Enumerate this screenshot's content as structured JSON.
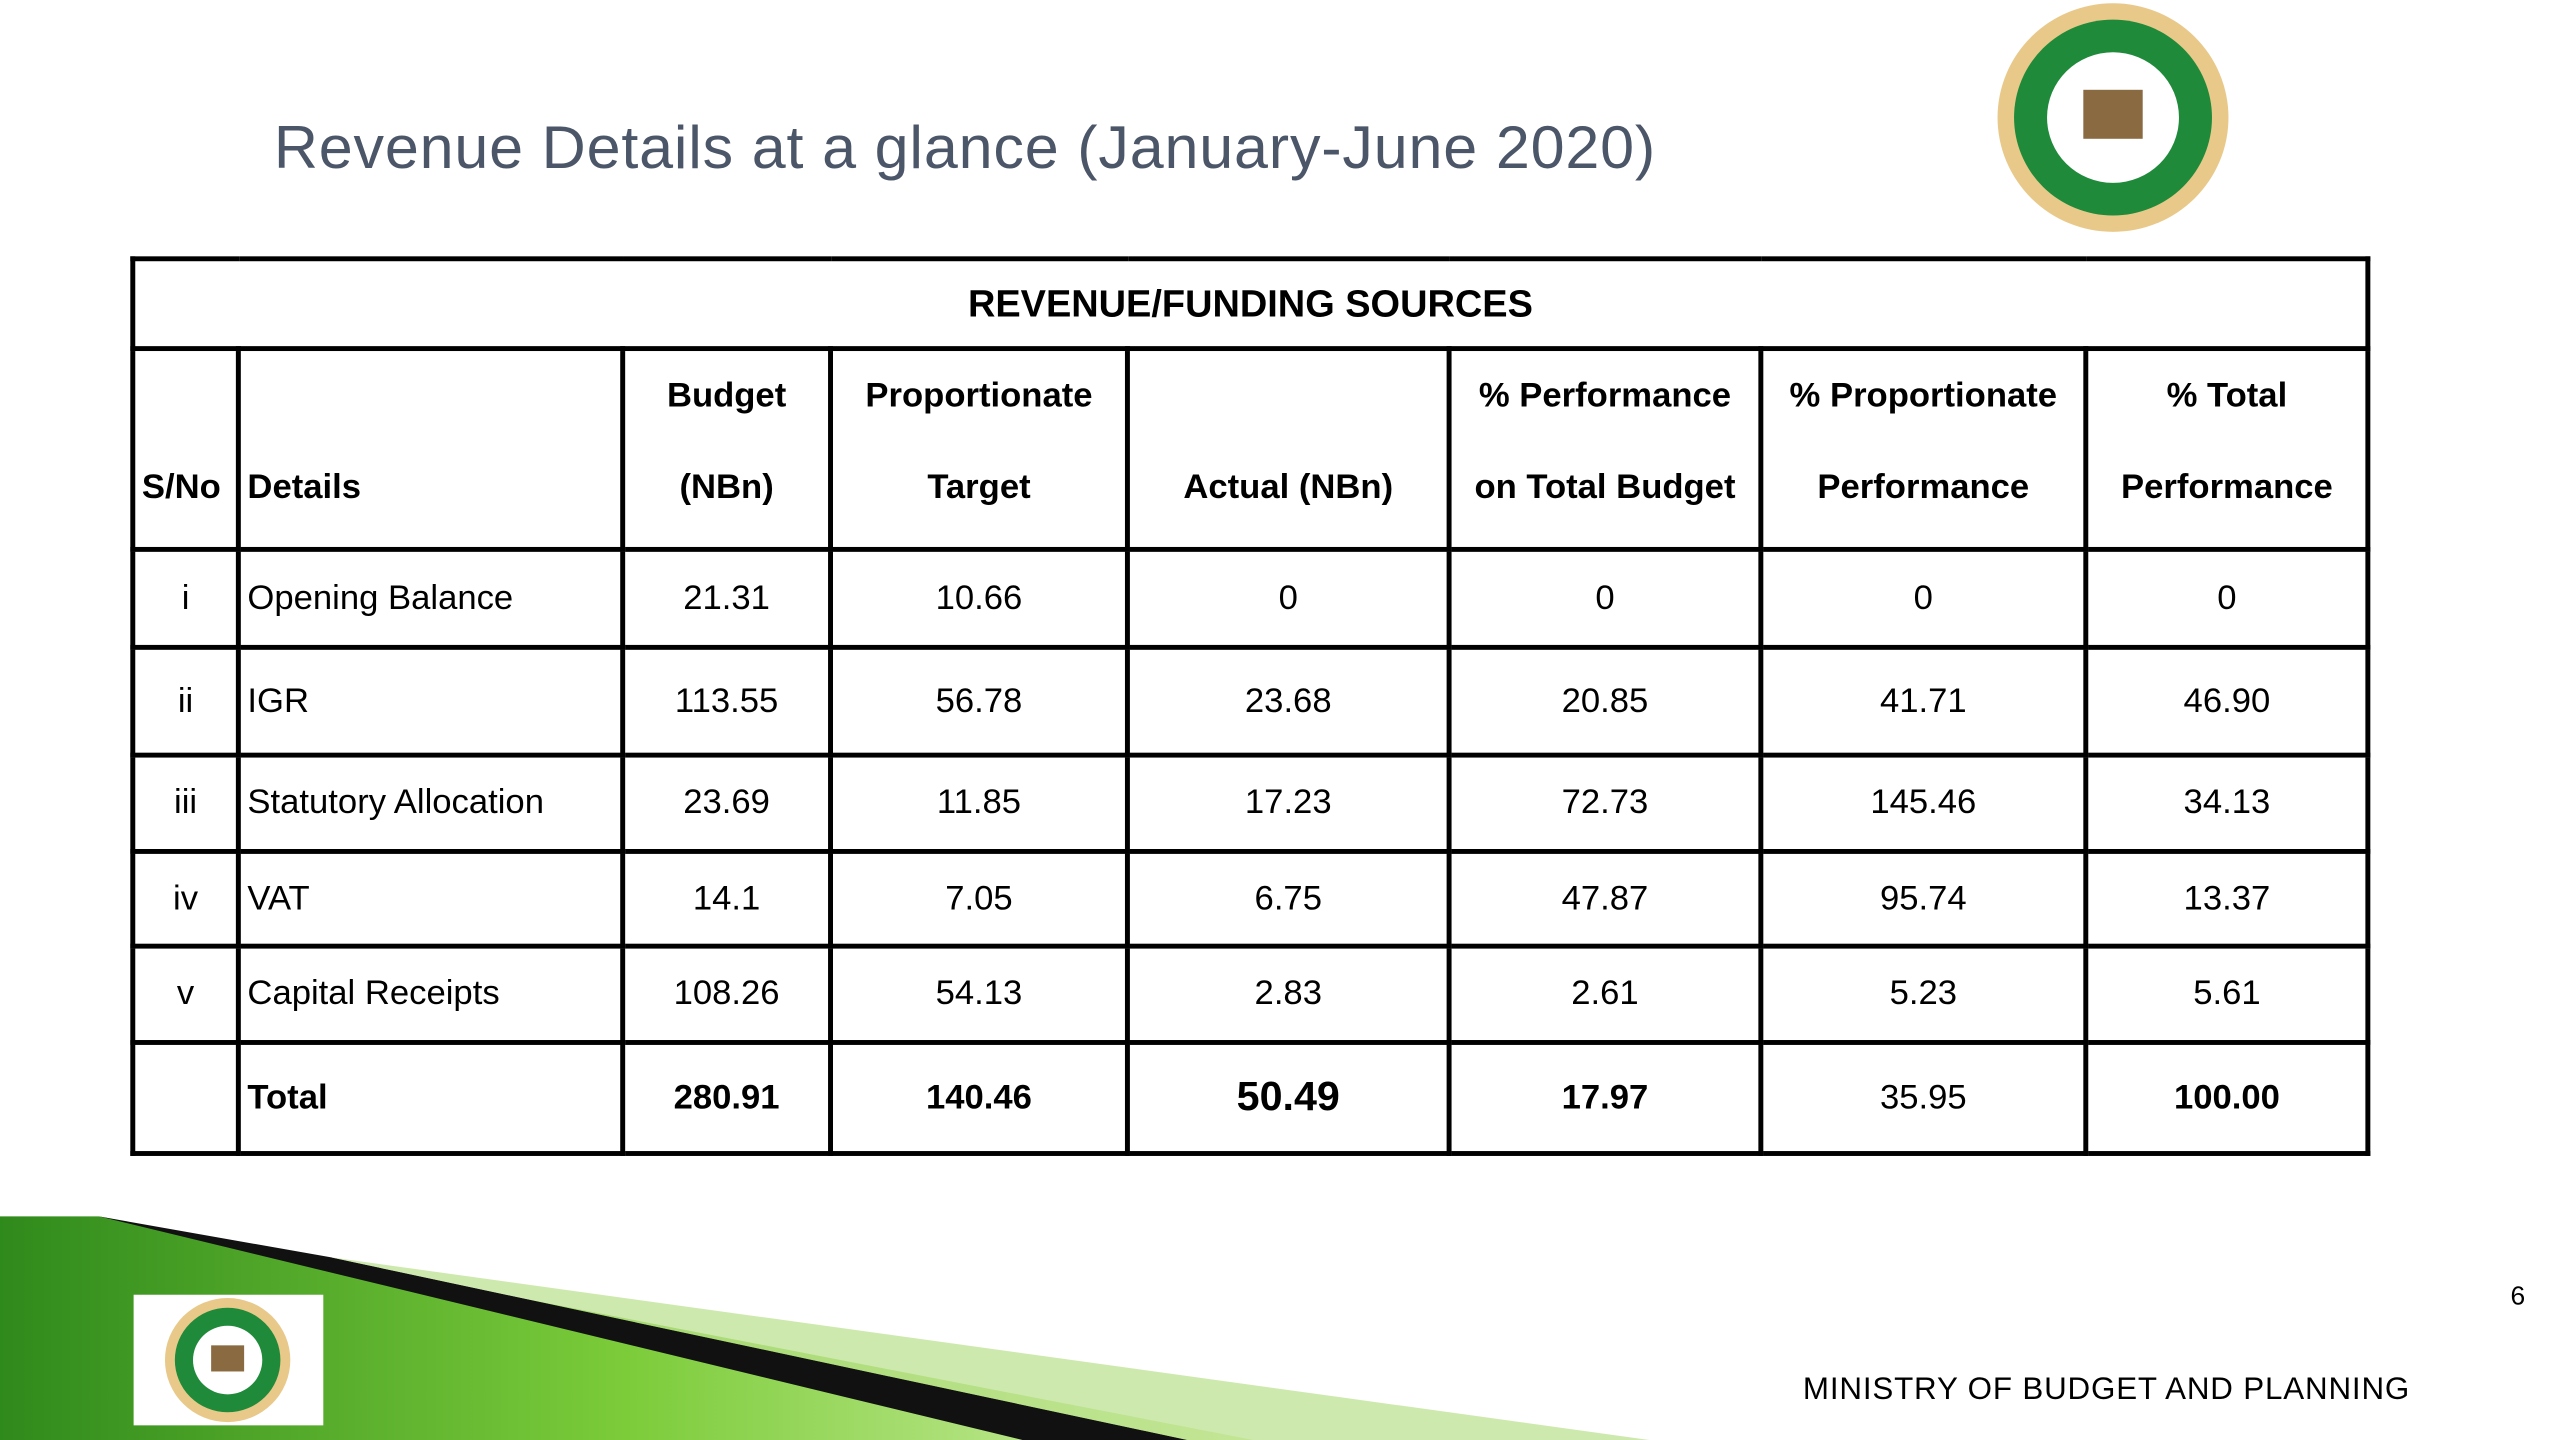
{
  "header": {
    "title": "Revenue Details at a glance (January-June 2020)"
  },
  "table": {
    "caption": "REVENUE/FUNDING SOURCES",
    "columns": [
      "S/No",
      "Details",
      "Budget (NBn)",
      "Proportionate Target",
      "Actual (NBn)",
      "% Performance on Total Budget",
      "% Proportionate Performance",
      "% Total Performance"
    ],
    "rows": [
      [
        "i",
        "Opening Balance",
        "21.31",
        "10.66",
        "0",
        "0",
        "0",
        "0"
      ],
      [
        "ii",
        "IGR",
        "113.55",
        "56.78",
        "23.68",
        "20.85",
        "41.71",
        "46.90"
      ],
      [
        "iii",
        "Statutory Allocation",
        "23.69",
        "11.85",
        "17.23",
        "72.73",
        "145.46",
        "34.13"
      ],
      [
        "iv",
        "VAT",
        "14.1",
        "7.05",
        "6.75",
        "47.87",
        "95.74",
        "13.37"
      ],
      [
        "v",
        "Capital Receipts",
        "108.26",
        "54.13",
        "2.83",
        "2.61",
        "5.23",
        "5.61"
      ],
      [
        "",
        "Total",
        "280.91",
        "140.46",
        "50.49",
        "17.97",
        "35.95",
        "100.00"
      ]
    ]
  },
  "footer": {
    "page_number": "6",
    "ministry": "MINISTRY OF BUDGET AND PLANNING"
  }
}
